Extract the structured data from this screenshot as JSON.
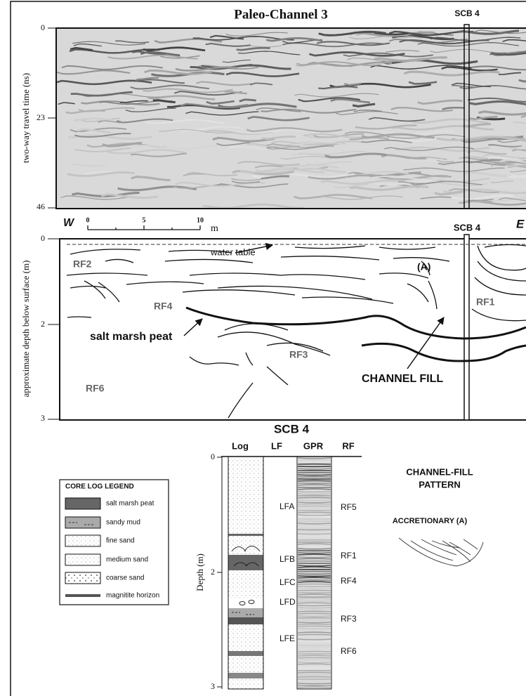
{
  "profile": {
    "title": "Paleo-Channel 3",
    "core_label": "SCB 4",
    "y_axis_label": "two-way travel time (ns)",
    "y_ticks": [
      "0",
      "23",
      "46"
    ]
  },
  "section": {
    "west": "W",
    "east": "E",
    "scale_ticks": [
      "0",
      "5",
      "10"
    ],
    "scale_unit": "m",
    "core_label": "SCB 4",
    "y_axis_label": "approximate depth below surface (m)",
    "y_ticks": [
      "0",
      "2",
      "3"
    ],
    "annotations": {
      "water_table": "water table",
      "feature": "(A)",
      "rf2": "RF2",
      "rf4": "RF4",
      "rf1": "RF1",
      "peat": "salt marsh peat",
      "rf3": "RF3",
      "rf6": "RF6",
      "channel_fill": "CHANNEL FILL"
    }
  },
  "core": {
    "title": "SCB 4",
    "headers": [
      "Log",
      "LF",
      "GPR",
      "RF"
    ],
    "y_axis_label": "Depth (m)",
    "y_ticks": [
      "0",
      "2",
      "3"
    ],
    "lf_units": [
      "LFA",
      "LFB",
      "LFC",
      "LFD",
      "LFE"
    ],
    "rf_units": [
      "RF5",
      "RF1",
      "RF4",
      "RF3",
      "RF6"
    ]
  },
  "legend": {
    "title": "CORE LOG LEGEND",
    "items": [
      "salt marsh peat",
      "sandy mud",
      "fine sand",
      "medium sand",
      "coarse sand",
      "magnitite horizon"
    ]
  },
  "pattern": {
    "title_lines": [
      "CHANNEL-FILL",
      "PATTERN"
    ],
    "label": "ACCRETIONARY (A)"
  }
}
